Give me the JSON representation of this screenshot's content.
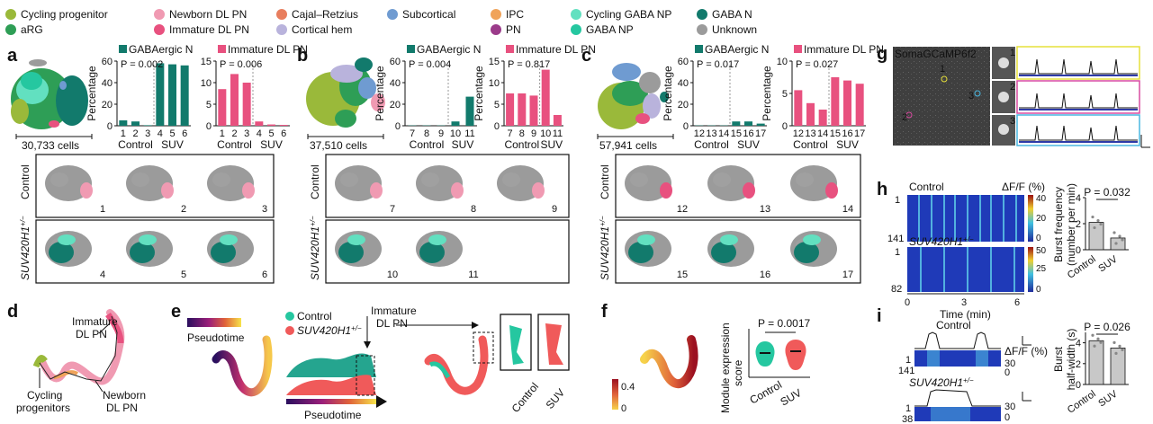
{
  "legend": {
    "items": [
      {
        "label": "Cycling progenitor",
        "color": "#9ab93a"
      },
      {
        "label": "aRG",
        "color": "#2e9e56"
      },
      {
        "label": "Newborn DL PN",
        "color": "#f09ab2"
      },
      {
        "label": "Immature DL PN",
        "color": "#e8517f"
      },
      {
        "label": "Cajal–Retzius",
        "color": "#e87e5e"
      },
      {
        "label": "Cortical hem",
        "color": "#b9b3dc"
      },
      {
        "label": "Subcortical",
        "color": "#6f9bd1"
      },
      {
        "label": "IPC",
        "color": "#f0a35a"
      },
      {
        "label": "PN",
        "color": "#9b3b8a"
      },
      {
        "label": "Cycling GABA NP",
        "color": "#62e0c0"
      },
      {
        "label": "GABA NP",
        "color": "#25c7a0"
      },
      {
        "label": "GABA N",
        "color": "#127a6c"
      },
      {
        "label": "Unknown",
        "color": "#9b9b9b"
      }
    ]
  },
  "panels": {
    "a": {
      "letter": "a",
      "cells": "30,733 cells"
    },
    "b": {
      "letter": "b",
      "cells": "37,510 cells"
    },
    "c": {
      "letter": "c",
      "cells": "57,941 cells"
    },
    "d": {
      "letter": "d",
      "label_immature": [
        "Immature",
        "DL PN"
      ],
      "label_cycling": [
        "Cycling",
        "progenitors"
      ],
      "label_newborn": [
        "Newborn",
        "DL PN"
      ]
    },
    "e": {
      "letter": "e",
      "pseudotime": "Pseudotime",
      "control": "Control",
      "suv": "SUV420H1",
      "suv_sup": "+/−",
      "immature": [
        "Immature",
        "DL PN"
      ],
      "pseudotime_axis": "Pseudotime",
      "box_control": "Control",
      "box_suv": "SUV"
    },
    "f": {
      "letter": "f",
      "scale_max": "0.4",
      "scale_min": "0",
      "ylabel": [
        "Module expression",
        "score"
      ],
      "p": "P = 0.0017",
      "xcats": [
        "Control",
        "SUV"
      ]
    },
    "g": {
      "letter": "g",
      "title": "SomaGCaMP6f2",
      "cells": [
        "1",
        "2",
        "3"
      ]
    },
    "h": {
      "letter": "h",
      "control": "Control",
      "suv": "SUV420H1",
      "suv_sup": "+/−",
      "dff": "ΔF/F (%)",
      "ctrl_row_top": "1",
      "ctrl_row_bottom": "141",
      "suv_row_top": "1",
      "suv_row_bottom": "82",
      "ctrl_scale": [
        "40",
        "20",
        "0"
      ],
      "suv_scale": [
        "50",
        "25",
        "0"
      ],
      "time_ticks": [
        "0",
        "3",
        "6"
      ],
      "time_label": "Time (min)",
      "bar_ylabel": [
        "Burst frequency",
        "(number per min)"
      ],
      "bar_p": "P = 0.032",
      "bar_cats": [
        "Control",
        "SUV"
      ],
      "bar_yticks": [
        "0",
        "2",
        "4"
      ]
    },
    "i": {
      "letter": "i",
      "control": "Control",
      "suv": "SUV420H1",
      "suv_sup": "+/−",
      "dff": "ΔF/F (%)",
      "ctrl_rows": [
        "1",
        "141"
      ],
      "suv_rows": [
        "1",
        "38"
      ],
      "scale_ctrl": [
        "30",
        "0"
      ],
      "scale_suv": [
        "30",
        "0"
      ],
      "bar_ylabel": [
        "Burst",
        "half-width (s)"
      ],
      "bar_p": "P = 0.026",
      "bar_cats": [
        "Control",
        "SUV"
      ],
      "bar_yticks": [
        "0",
        "2",
        "4"
      ]
    }
  },
  "rows": {
    "control": "Control",
    "suv": "SUV420H1",
    "suv_sup": "+/−"
  },
  "sample_labels": {
    "a": [
      "1",
      "2",
      "3",
      "4",
      "5",
      "6"
    ],
    "b": [
      "7",
      "8",
      "9",
      "10",
      "11"
    ],
    "c": [
      "12",
      "13",
      "14",
      "15",
      "16",
      "17"
    ]
  },
  "chart_data": [
    {
      "id": "a-gaba",
      "type": "bar",
      "title": "GABAergic N",
      "color": "#127a6c",
      "ylabel": "Percentage",
      "ylim": [
        0,
        60
      ],
      "yticks": [
        0,
        20,
        40,
        60
      ],
      "categories": [
        "1",
        "2",
        "3",
        "4",
        "5",
        "6"
      ],
      "values": [
        5,
        4,
        0.5,
        58,
        57,
        56
      ],
      "groups": [
        "Control",
        "SUV"
      ],
      "p": "P = 0.002"
    },
    {
      "id": "a-imm",
      "type": "bar",
      "title": "Immature DL PN",
      "color": "#e8517f",
      "ylabel": "",
      "ylim": [
        0,
        15
      ],
      "yticks": [
        0,
        5,
        10,
        15
      ],
      "categories": [
        "1",
        "2",
        "3",
        "4",
        "5",
        "6"
      ],
      "values": [
        8.5,
        12,
        10,
        1,
        0.3,
        0.2
      ],
      "groups": [
        "Control",
        "SUV"
      ],
      "p": "P = 0.006"
    },
    {
      "id": "b-gaba",
      "type": "bar",
      "title": "GABAergic N",
      "color": "#127a6c",
      "ylabel": "Percentage",
      "ylim": [
        0,
        60
      ],
      "yticks": [
        0,
        20,
        40,
        60
      ],
      "categories": [
        "7",
        "8",
        "9",
        "10",
        "11"
      ],
      "values": [
        0.3,
        0.3,
        0.3,
        4,
        27
      ],
      "groups": [
        "Control",
        "SUV"
      ],
      "p": "P = 0.004"
    },
    {
      "id": "b-imm",
      "type": "bar",
      "title": "Immature DL PN",
      "color": "#e8517f",
      "ylabel": "Percentage",
      "ylim": [
        0,
        15
      ],
      "yticks": [
        0,
        5,
        10,
        15
      ],
      "categories": [
        "7",
        "8",
        "9",
        "10",
        "11"
      ],
      "values": [
        7.5,
        7.5,
        7,
        13,
        2.5
      ],
      "groups": [
        "Control",
        "SUV"
      ],
      "p": "P = 0.817"
    },
    {
      "id": "c-gaba",
      "type": "bar",
      "title": "GABAergic N",
      "color": "#127a6c",
      "ylabel": "Percentage",
      "ylim": [
        0,
        60
      ],
      "yticks": [
        0,
        20,
        40,
        60
      ],
      "categories": [
        "12",
        "13",
        "14",
        "15",
        "16",
        "17"
      ],
      "values": [
        0.3,
        0.3,
        0.3,
        4,
        4,
        2
      ],
      "groups": [
        "Control",
        "SUV"
      ],
      "p": "P = 0.017"
    },
    {
      "id": "c-imm",
      "type": "bar",
      "title": "Immature DL PN",
      "color": "#e8517f",
      "ylabel": "Percentage",
      "ylim": [
        0,
        10
      ],
      "yticks": [
        0,
        5,
        10
      ],
      "categories": [
        "12",
        "13",
        "14",
        "15",
        "16",
        "17"
      ],
      "values": [
        5.5,
        3.5,
        2.5,
        7.5,
        7,
        6.5
      ],
      "groups": [
        "Control",
        "SUV"
      ],
      "p": "P = 0.027"
    },
    {
      "id": "h-bar",
      "type": "bar",
      "title": "",
      "ylabel": "Burst frequency (number per min)",
      "ylim": [
        0,
        4
      ],
      "yticks": [
        0,
        2,
        4
      ],
      "categories": [
        "Control",
        "SUV"
      ],
      "values": [
        2.1,
        0.9
      ],
      "p": "P = 0.032"
    },
    {
      "id": "i-bar",
      "type": "bar",
      "title": "",
      "ylabel": "Burst half-width (s)",
      "ylim": [
        0,
        5
      ],
      "yticks": [
        0,
        2,
        4
      ],
      "categories": [
        "Control",
        "SUV"
      ],
      "values": [
        4.2,
        3.5
      ],
      "p": "P = 0.026"
    }
  ]
}
